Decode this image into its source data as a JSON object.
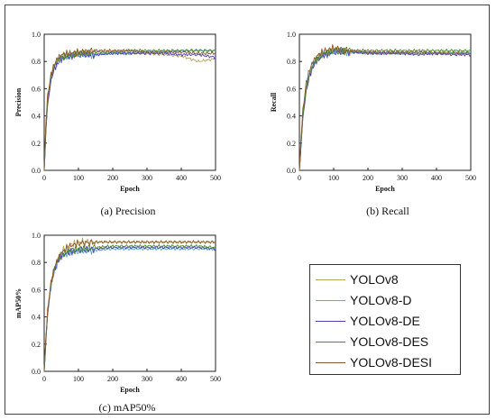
{
  "captions": {
    "precision": "(a) Precision",
    "recall": "(b) Recall",
    "map50": "(c) mAP50%"
  },
  "legend": [
    {
      "label": "YOLOv8",
      "color": "#b8a85a"
    },
    {
      "label": "YOLOv8-D",
      "color": "#5fa8d8"
    },
    {
      "label": "YOLOv8-DE",
      "color": "#4a3fb8"
    },
    {
      "label": "YOLOv8-DES",
      "color": "#4e8a2e"
    },
    {
      "label": "YOLOv8-DESI",
      "color": "#8c5a2e"
    }
  ],
  "chart_data": [
    {
      "type": "line",
      "ylabel": "Precision",
      "xlabel": "Epoch",
      "xlim": [
        0,
        500
      ],
      "ylim": [
        0,
        1.0
      ],
      "xticks": [
        "0",
        "100",
        "200",
        "300",
        "400",
        "500"
      ],
      "yticks": [
        "0.0",
        "0.2",
        "0.4",
        "0.6",
        "0.8",
        "1.0"
      ],
      "x": [
        0,
        5,
        10,
        20,
        30,
        40,
        50,
        75,
        100,
        150,
        200,
        250,
        300,
        350,
        400,
        450,
        500
      ],
      "series": [
        {
          "name": "YOLOv8",
          "color": "#b8a85a",
          "values": [
            0.0,
            0.35,
            0.55,
            0.7,
            0.78,
            0.82,
            0.84,
            0.85,
            0.86,
            0.86,
            0.87,
            0.86,
            0.86,
            0.85,
            0.84,
            0.8,
            0.82
          ]
        },
        {
          "name": "YOLOv8-D",
          "color": "#5fa8d8",
          "values": [
            0.0,
            0.3,
            0.5,
            0.68,
            0.76,
            0.8,
            0.82,
            0.84,
            0.85,
            0.85,
            0.86,
            0.86,
            0.87,
            0.87,
            0.88,
            0.88,
            0.88
          ]
        },
        {
          "name": "YOLOv8-DE",
          "color": "#4a3fb8",
          "values": [
            0.0,
            0.28,
            0.48,
            0.66,
            0.75,
            0.79,
            0.82,
            0.84,
            0.85,
            0.85,
            0.86,
            0.86,
            0.86,
            0.86,
            0.85,
            0.85,
            0.83
          ]
        },
        {
          "name": "YOLOv8-DES",
          "color": "#4e8a2e",
          "values": [
            0.0,
            0.32,
            0.52,
            0.69,
            0.77,
            0.81,
            0.83,
            0.85,
            0.86,
            0.87,
            0.87,
            0.88,
            0.88,
            0.88,
            0.88,
            0.88,
            0.88
          ]
        },
        {
          "name": "YOLOv8-DESI",
          "color": "#8c5a2e",
          "values": [
            0.0,
            0.34,
            0.54,
            0.7,
            0.78,
            0.83,
            0.85,
            0.86,
            0.87,
            0.88,
            0.88,
            0.88,
            0.87,
            0.87,
            0.87,
            0.86,
            0.86
          ]
        }
      ]
    },
    {
      "type": "line",
      "ylabel": "Recall",
      "xlabel": "Epoch",
      "xlim": [
        0,
        500
      ],
      "ylim": [
        0,
        1.0
      ],
      "xticks": [
        "0",
        "100",
        "200",
        "300",
        "400",
        "500"
      ],
      "yticks": [
        "0.0",
        "0.2",
        "0.4",
        "0.6",
        "0.8",
        "1.0"
      ],
      "x": [
        0,
        5,
        10,
        20,
        30,
        40,
        50,
        75,
        100,
        150,
        200,
        250,
        300,
        350,
        400,
        450,
        500
      ],
      "series": [
        {
          "name": "YOLOv8",
          "color": "#b8a85a",
          "values": [
            0.0,
            0.2,
            0.4,
            0.6,
            0.7,
            0.77,
            0.82,
            0.86,
            0.88,
            0.87,
            0.86,
            0.86,
            0.86,
            0.86,
            0.87,
            0.87,
            0.87
          ]
        },
        {
          "name": "YOLOv8-D",
          "color": "#5fa8d8",
          "values": [
            0.0,
            0.22,
            0.42,
            0.62,
            0.72,
            0.78,
            0.82,
            0.86,
            0.87,
            0.87,
            0.86,
            0.86,
            0.86,
            0.86,
            0.86,
            0.86,
            0.86
          ]
        },
        {
          "name": "YOLOv8-DE",
          "color": "#4a3fb8",
          "values": [
            0.0,
            0.18,
            0.38,
            0.58,
            0.7,
            0.76,
            0.81,
            0.85,
            0.87,
            0.87,
            0.86,
            0.86,
            0.86,
            0.85,
            0.86,
            0.85,
            0.85
          ]
        },
        {
          "name": "YOLOv8-DES",
          "color": "#4e8a2e",
          "values": [
            0.0,
            0.2,
            0.4,
            0.6,
            0.71,
            0.77,
            0.82,
            0.86,
            0.88,
            0.88,
            0.88,
            0.88,
            0.88,
            0.88,
            0.88,
            0.88,
            0.88
          ]
        },
        {
          "name": "YOLOv8-DESI",
          "color": "#8c5a2e",
          "values": [
            0.0,
            0.24,
            0.44,
            0.64,
            0.74,
            0.8,
            0.84,
            0.88,
            0.9,
            0.88,
            0.87,
            0.87,
            0.87,
            0.87,
            0.86,
            0.86,
            0.86
          ]
        }
      ]
    },
    {
      "type": "line",
      "ylabel": "mAP50%",
      "xlabel": "Epoch",
      "xlim": [
        0,
        500
      ],
      "ylim": [
        0,
        1.0
      ],
      "xticks": [
        "0",
        "100",
        "200",
        "300",
        "400",
        "500"
      ],
      "yticks": [
        "0.0",
        "0.2",
        "0.4",
        "0.6",
        "0.8",
        "1.0"
      ],
      "x": [
        0,
        5,
        10,
        20,
        30,
        40,
        50,
        75,
        100,
        150,
        200,
        250,
        300,
        350,
        400,
        450,
        500
      ],
      "series": [
        {
          "name": "YOLOv8",
          "color": "#b8a85a",
          "values": [
            0.0,
            0.25,
            0.45,
            0.66,
            0.76,
            0.83,
            0.88,
            0.93,
            0.95,
            0.95,
            0.95,
            0.95,
            0.95,
            0.95,
            0.95,
            0.95,
            0.95
          ]
        },
        {
          "name": "YOLOv8-D",
          "color": "#5fa8d8",
          "values": [
            0.0,
            0.22,
            0.42,
            0.63,
            0.74,
            0.8,
            0.84,
            0.87,
            0.88,
            0.89,
            0.9,
            0.9,
            0.9,
            0.9,
            0.9,
            0.9,
            0.9
          ]
        },
        {
          "name": "YOLOv8-DE",
          "color": "#4a3fb8",
          "values": [
            0.0,
            0.22,
            0.42,
            0.64,
            0.75,
            0.81,
            0.85,
            0.88,
            0.89,
            0.9,
            0.91,
            0.91,
            0.91,
            0.91,
            0.91,
            0.91,
            0.9
          ]
        },
        {
          "name": "YOLOv8-DES",
          "color": "#4e8a2e",
          "values": [
            0.0,
            0.24,
            0.44,
            0.65,
            0.76,
            0.82,
            0.86,
            0.89,
            0.9,
            0.91,
            0.92,
            0.92,
            0.92,
            0.92,
            0.92,
            0.92,
            0.91
          ]
        },
        {
          "name": "YOLOv8-DESI",
          "color": "#8c5a2e",
          "values": [
            0.0,
            0.24,
            0.44,
            0.65,
            0.76,
            0.83,
            0.87,
            0.92,
            0.94,
            0.95,
            0.95,
            0.95,
            0.95,
            0.95,
            0.95,
            0.95,
            0.95
          ]
        }
      ]
    }
  ]
}
